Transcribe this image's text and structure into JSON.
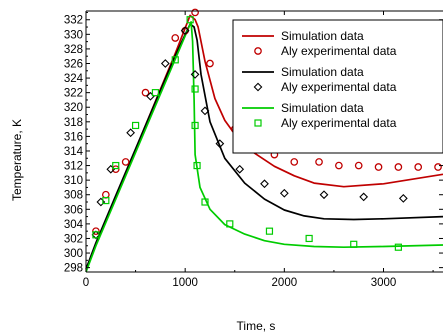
{
  "chart_data": {
    "type": "line",
    "xlabel": "Time, s",
    "ylabel": "Temperature, K",
    "xlim": [
      0,
      3600
    ],
    "ylim": [
      297.4,
      333.2
    ],
    "x_ticks": [
      0,
      1000,
      2000,
      3000
    ],
    "y_ticks": [
      298,
      300,
      302,
      304,
      306,
      308,
      310,
      312,
      314,
      316,
      318,
      320,
      322,
      324,
      326,
      328,
      330,
      332
    ],
    "legend_position": "top-right",
    "series": [
      {
        "name": "Simulation data",
        "kind": "line",
        "color": "#c00000",
        "x": [
          0,
          100,
          300,
          500,
          700,
          900,
          1050,
          1100,
          1130,
          1200,
          1300,
          1400,
          1500,
          1700,
          1900,
          2100,
          2300,
          2600,
          3000,
          3600
        ],
        "y": [
          297.6,
          301.2,
          307.8,
          314.2,
          320.8,
          327.4,
          332.6,
          332.0,
          331.0,
          326.3,
          321.2,
          318.2,
          316.3,
          313.7,
          311.9,
          310.6,
          309.6,
          309.1,
          309.5,
          310.8
        ]
      },
      {
        "name": "Aly experimental data",
        "kind": "marker",
        "marker": "circle",
        "color": "#c00000",
        "x": [
          100,
          200,
          300,
          400,
          600,
          900,
          1000,
          1100,
          1250,
          1500,
          1700,
          1900,
          2100,
          2350,
          2550,
          2750,
          2950,
          3150,
          3350,
          3550
        ],
        "y": [
          303,
          308,
          311.5,
          312.5,
          322,
          329.5,
          330.5,
          333,
          326,
          317,
          314.5,
          313.5,
          312.5,
          312.5,
          312,
          312,
          311.8,
          311.8,
          311.8,
          311.8
        ]
      },
      {
        "name": "Simulation data",
        "kind": "line",
        "color": "#000000",
        "x": [
          0,
          100,
          300,
          500,
          700,
          900,
          1050,
          1090,
          1120,
          1160,
          1250,
          1400,
          1600,
          1800,
          2000,
          2200,
          2400,
          2700,
          3000,
          3600
        ],
        "y": [
          297.8,
          301.4,
          307.9,
          314.3,
          320.7,
          327.1,
          331.4,
          331.0,
          329.2,
          324.5,
          318.0,
          313.0,
          309.6,
          307.4,
          305.9,
          305.1,
          304.7,
          304.6,
          304.7,
          305.0
        ]
      },
      {
        "name": "Aly experimental data",
        "kind": "marker",
        "marker": "diamond",
        "color": "#000000",
        "x": [
          100,
          150,
          250,
          450,
          650,
          800,
          1000,
          1100,
          1200,
          1350,
          1550,
          1800,
          2000,
          2400,
          2800,
          3200
        ],
        "y": [
          302.5,
          307,
          311.5,
          316.5,
          321.5,
          326,
          330.5,
          324.5,
          319.5,
          315,
          311.5,
          309.5,
          308.2,
          308,
          307.7,
          307.5
        ]
      },
      {
        "name": "Simulation data",
        "kind": "line",
        "color": "#00cc00",
        "x": [
          0,
          100,
          300,
          500,
          700,
          900,
          1060,
          1075,
          1090,
          1100,
          1150,
          1250,
          1400,
          1600,
          1800,
          2000,
          2300,
          2600,
          3000,
          3600
        ],
        "y": [
          297.4,
          301.0,
          307.4,
          313.8,
          320.2,
          326.6,
          331.7,
          329.0,
          321.0,
          313.5,
          309.0,
          306.0,
          303.9,
          302.6,
          301.7,
          301.2,
          300.9,
          300.8,
          300.9,
          301.1
        ]
      },
      {
        "name": "Aly experimental data",
        "kind": "marker",
        "marker": "square",
        "color": "#00cc00",
        "x": [
          100,
          200,
          300,
          500,
          700,
          900,
          1050,
          1100,
          1100,
          1120,
          1200,
          1450,
          1850,
          2250,
          2700,
          3150
        ],
        "y": [
          302.5,
          307.2,
          312,
          317.5,
          322,
          326.5,
          332,
          322.5,
          317.5,
          312,
          307,
          304,
          303,
          302,
          301.2,
          300.8
        ]
      }
    ]
  }
}
